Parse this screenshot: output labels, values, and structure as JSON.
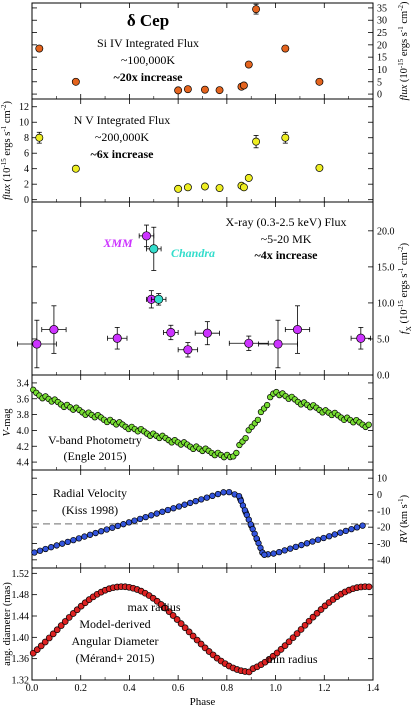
{
  "chart_data": {
    "type": "scatter",
    "x_axis": {
      "label": "Phase",
      "range": [
        0.0,
        1.4
      ],
      "ticks": [
        0.0,
        0.2,
        0.4,
        0.6,
        0.8,
        1.0,
        1.2,
        1.4
      ],
      "tick_labels": [
        "0.0",
        "0.2",
        "0.4",
        "0.6",
        "0.8",
        "1.0",
        "1.2",
        "1.4"
      ]
    },
    "panels": [
      {
        "id": "si",
        "title_html": "<tspan font-weight='bold' font-size='17'>δ Cep</tspan>",
        "lines": [
          "δ Cep",
          "Si IV Integrated Flux",
          "~100,000K",
          "~20x increase"
        ],
        "ylabel": "flux (10-15 ergs s-1 cm-2)",
        "ylabel_side": "right",
        "ylim": [
          -2,
          37
        ],
        "ticks": [
          0,
          5,
          10,
          15,
          20,
          25,
          30,
          35
        ],
        "tick_labels": [
          "0",
          "5",
          "10",
          "15",
          "20",
          "25",
          "30",
          "35"
        ],
        "color": "#e4641e",
        "points": [
          [
            0.03,
            18.5,
            0
          ],
          [
            0.18,
            5,
            0
          ],
          [
            0.6,
            1.5,
            0
          ],
          [
            0.64,
            2,
            0
          ],
          [
            0.71,
            1.8,
            0
          ],
          [
            0.77,
            1.6,
            0
          ],
          [
            0.86,
            3,
            0
          ],
          [
            0.87,
            3.5,
            0
          ],
          [
            0.89,
            12,
            0
          ],
          [
            0.92,
            34.5,
            2
          ],
          [
            1.04,
            18.5,
            0
          ],
          [
            1.18,
            5,
            0
          ]
        ]
      },
      {
        "id": "nv",
        "lines": [
          "N V Integrated Flux",
          "~200,000K",
          "~6x increase"
        ],
        "ylabel": "flux (10-15 ergs s-1 cm-2)",
        "ylabel_side": "left",
        "ylim": [
          -0.3,
          13
        ],
        "ticks": [
          0,
          2,
          4,
          6,
          8,
          10,
          12
        ],
        "tick_labels": [
          "0",
          "2",
          "4",
          "6",
          "8",
          "10",
          "12"
        ],
        "color": "#eeee22",
        "points": [
          [
            0.03,
            8,
            0.7
          ],
          [
            0.18,
            4,
            0
          ],
          [
            0.6,
            1.4,
            0
          ],
          [
            0.64,
            1.6,
            0
          ],
          [
            0.71,
            1.7,
            0
          ],
          [
            0.77,
            1.5,
            0
          ],
          [
            0.86,
            1.8,
            0
          ],
          [
            0.87,
            1.6,
            0
          ],
          [
            0.89,
            2.8,
            0
          ],
          [
            0.92,
            7.5,
            0.8
          ],
          [
            1.04,
            8,
            0.7
          ],
          [
            1.18,
            4.1,
            0
          ]
        ]
      },
      {
        "id": "xray",
        "lines": [
          "X-ray (0.3-2.5 keV) Flux",
          "~5-20 MK",
          "~4x increase"
        ],
        "ylabel": "fX (10-15 ergs s-1 cm-2)",
        "ylabel_side": "right",
        "ylim": [
          0,
          24
        ],
        "ticks": [
          0,
          5,
          10,
          15,
          20
        ],
        "tick_labels": [
          "0.0",
          "5.0",
          "10.0",
          "15.0",
          "20.0"
        ],
        "legend": [
          {
            "label": "XMM",
            "color": "#cc33ff"
          },
          {
            "label": "Chandra",
            "color": "#33ddcc"
          }
        ],
        "points_xmm": [
          [
            0.02,
            4.3,
            0.08,
            3.3
          ],
          [
            0.09,
            6.3,
            0.05,
            3.3
          ],
          [
            0.35,
            5.1,
            0.04,
            1.5
          ],
          [
            0.47,
            19.3,
            0.03,
            1.5
          ],
          [
            0.49,
            10.5,
            0.02,
            1.2
          ],
          [
            0.57,
            5.9,
            0.03,
            1.0
          ],
          [
            0.64,
            3.5,
            0.04,
            1.0
          ],
          [
            0.72,
            5.8,
            0.05,
            1.6
          ],
          [
            0.89,
            4.4,
            0.08,
            1.0
          ],
          [
            1.01,
            4.3,
            0.08,
            3.3
          ],
          [
            1.09,
            6.3,
            0.05,
            3.3
          ],
          [
            1.35,
            5.1,
            0.04,
            1.5
          ]
        ],
        "points_chandra": [
          [
            0.5,
            17.5,
            0.03,
            3.0
          ],
          [
            0.52,
            10.5,
            0.03,
            0.8
          ]
        ]
      },
      {
        "id": "vband",
        "lines": [
          "V-band Photometry",
          "(Engle 2015)"
        ],
        "ylabel": "V-mag",
        "ylabel_side": "left",
        "ylim": [
          4.5,
          3.3
        ],
        "ticks": [
          3.4,
          3.6,
          3.8,
          4.0,
          4.2,
          4.4
        ],
        "tick_labels": [
          "3.4",
          "3.6",
          "3.8",
          "4.0",
          "4.2",
          "4.4"
        ],
        "color": "#77dd33"
      },
      {
        "id": "rv",
        "lines": [
          "Radial Velocity",
          "(Kiss 1998)"
        ],
        "ylabel": "RV (km s-1)",
        "ylabel_side": "right",
        "ylim": [
          -45,
          15
        ],
        "ticks": [
          10,
          0,
          -10,
          -20,
          -30,
          -40
        ],
        "tick_labels": [
          "10",
          "0",
          "-10",
          "-20",
          "-30",
          "-40"
        ],
        "dashed_level": -18,
        "color": "#3355dd"
      },
      {
        "id": "diam",
        "lines": [
          "Model-derived",
          "Angular Diameter",
          "(Mérand+ 2015)"
        ],
        "annotations": [
          "max radius",
          "min radius"
        ],
        "ylabel": "ang. diameter (mas)",
        "ylabel_side": "left",
        "ylim": [
          1.32,
          1.53
        ],
        "ticks": [
          1.32,
          1.36,
          1.4,
          1.44,
          1.48,
          1.52
        ],
        "tick_labels": [
          "1.32",
          "1.36",
          "1.40",
          "1.44",
          "1.48",
          "1.52"
        ],
        "color": "#dd2222"
      }
    ]
  }
}
